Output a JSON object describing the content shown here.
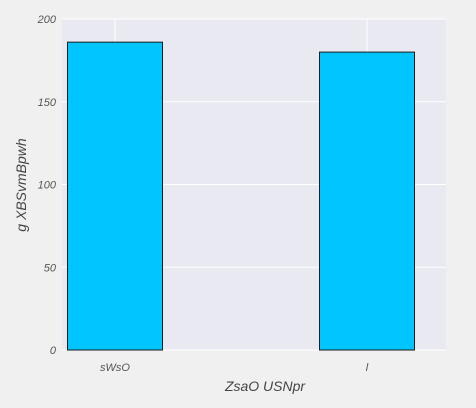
{
  "chart_data": {
    "type": "bar",
    "title": "",
    "xlabel": "ZsaO USNpr",
    "ylabel": "g XBSvmBpwh",
    "categories": [
      "sWsO",
      "l"
    ],
    "values": [
      186,
      180
    ],
    "ylim": [
      0,
      200
    ],
    "yticks": [
      0,
      50,
      100,
      150,
      200
    ],
    "grid": true,
    "legend": "none",
    "colors": {
      "bar": "#00c5ff",
      "bar_edge": "#1a1a1a",
      "plot_background": "#e9e9f1",
      "grid": "#ffffff",
      "figure_background": "#f0f0f0"
    }
  }
}
